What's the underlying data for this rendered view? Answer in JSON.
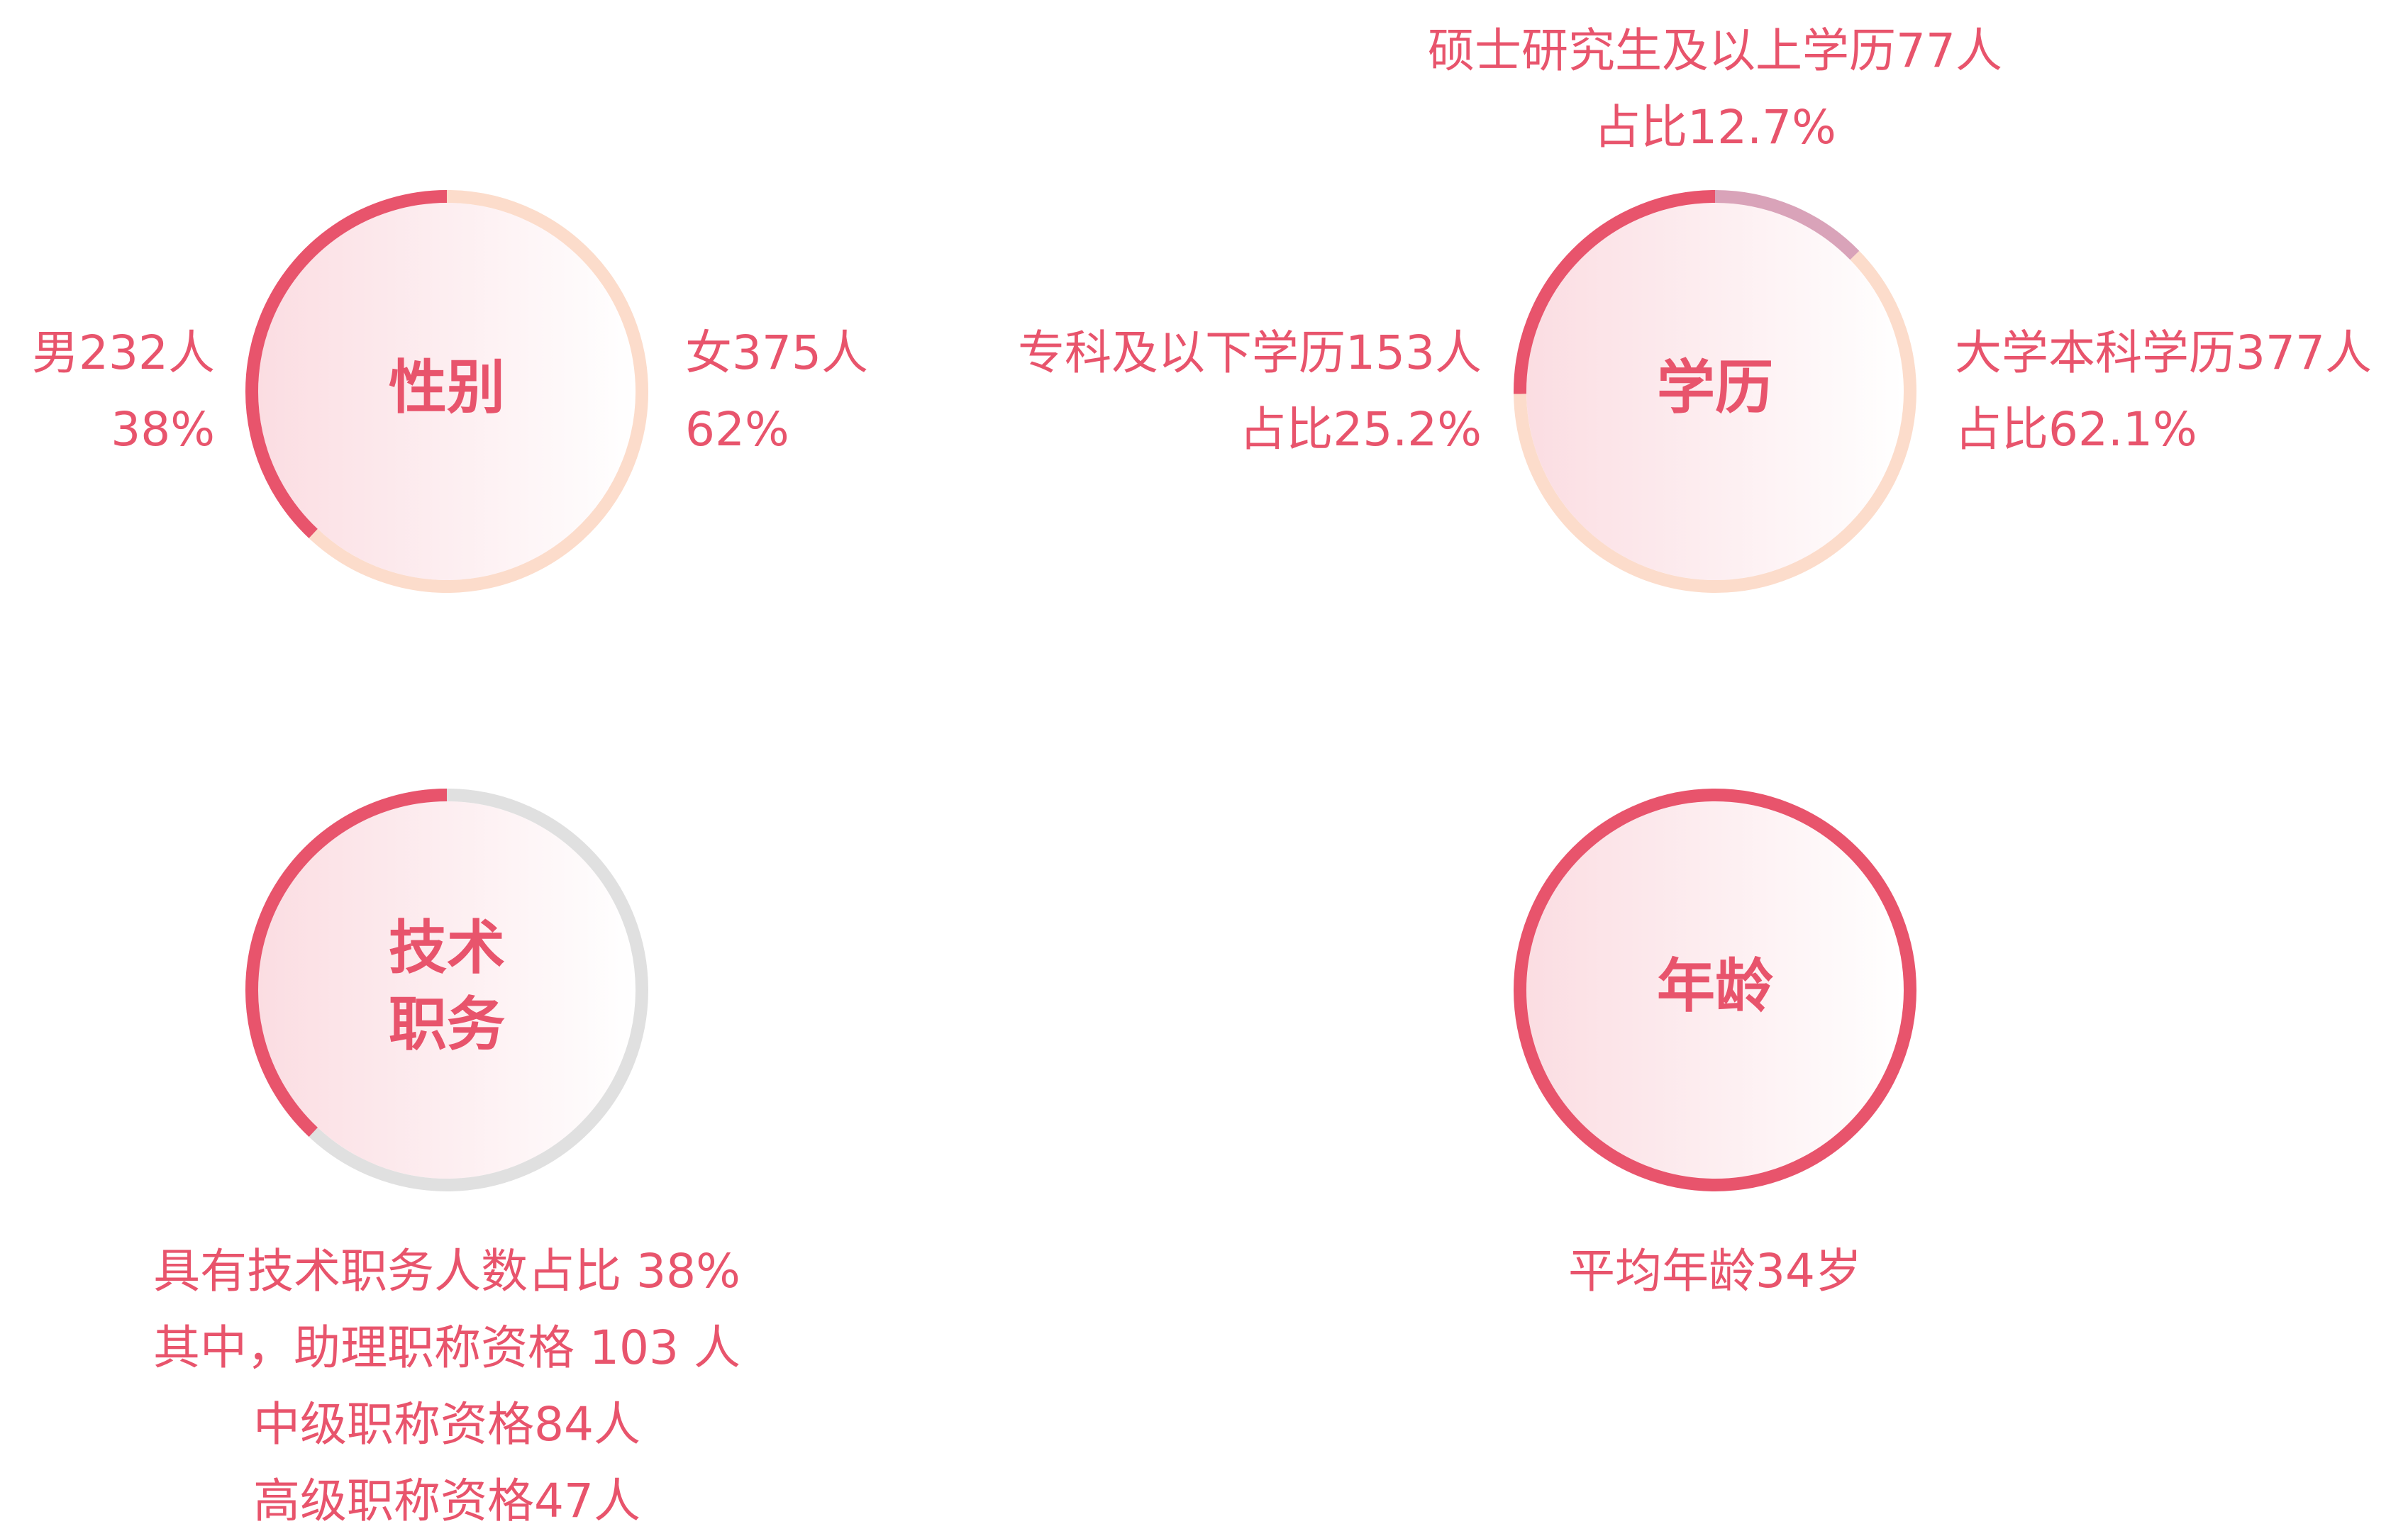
{
  "chart_data": [
    {
      "type": "ring",
      "title": [
        "性别"
      ],
      "categories": [
        "男232人",
        "女375人"
      ],
      "values": [
        38,
        62
      ],
      "value_labels": [
        "38%",
        "62%"
      ],
      "colors": [
        "#e8546c",
        "#fcdccb"
      ]
    },
    {
      "type": "ring",
      "title": [
        "学历"
      ],
      "categories": [
        "专科及以下学历153人",
        "大学本科学历377人",
        "硕士研究生及以上学历77人"
      ],
      "values": [
        25.2,
        62.1,
        12.7
      ],
      "value_labels": [
        "占比25.2%",
        "占比62.1%",
        "占比12.7%"
      ],
      "colors": [
        "#e8546c",
        "#fcdccb",
        "#d9a3b9"
      ]
    },
    {
      "type": "ring",
      "title": [
        "技术",
        "职务"
      ],
      "values": [
        38
      ],
      "value_labels": [
        "具有技术职务人数占比 38%"
      ],
      "colors": [
        "#e8546c"
      ],
      "track_color": "#e0e0e0",
      "annotations": [
        "其中，助理职称资格 103 人",
        "中级职称资格84人",
        "高级职称资格47人"
      ]
    },
    {
      "type": "ring",
      "title": [
        "年龄"
      ],
      "track_color": "#e8546c",
      "annotations": [
        "平均年龄34岁"
      ]
    }
  ]
}
